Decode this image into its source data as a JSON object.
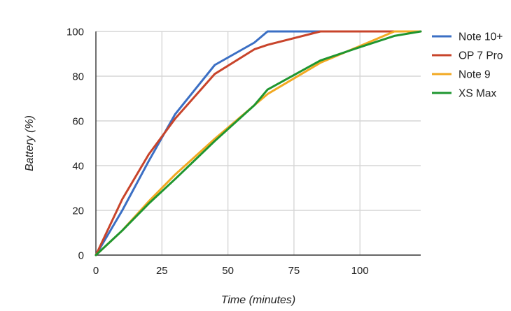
{
  "chart_data": {
    "type": "line",
    "title": "",
    "xlabel": "Time (minutes)",
    "ylabel": "Battery (%)",
    "xlim": [
      0,
      123
    ],
    "ylim": [
      0,
      100
    ],
    "x_ticks": [
      0,
      25,
      50,
      75,
      100
    ],
    "y_ticks": [
      0,
      20,
      40,
      60,
      80,
      100
    ],
    "grid": true,
    "legend_position": "right",
    "series": [
      {
        "name": "Note 10+",
        "color": "#3b6fc4",
        "points": [
          [
            0,
            0
          ],
          [
            10,
            20
          ],
          [
            20,
            42
          ],
          [
            30,
            63
          ],
          [
            45,
            85
          ],
          [
            60,
            95
          ],
          [
            65,
            100
          ],
          [
            123,
            100
          ]
        ]
      },
      {
        "name": "OP 7 Pro",
        "color": "#c8442b",
        "points": [
          [
            0,
            0
          ],
          [
            10,
            25
          ],
          [
            20,
            45
          ],
          [
            30,
            61
          ],
          [
            45,
            81
          ],
          [
            60,
            92
          ],
          [
            65,
            94
          ],
          [
            85,
            100
          ],
          [
            123,
            100
          ]
        ]
      },
      {
        "name": "Note 9",
        "color": "#f2a922",
        "points": [
          [
            0,
            0
          ],
          [
            10,
            11
          ],
          [
            20,
            24
          ],
          [
            30,
            36
          ],
          [
            45,
            52
          ],
          [
            60,
            67
          ],
          [
            65,
            72
          ],
          [
            85,
            86
          ],
          [
            113,
            100
          ],
          [
            123,
            100
          ]
        ]
      },
      {
        "name": "XS Max",
        "color": "#1f9630",
        "points": [
          [
            0,
            0
          ],
          [
            10,
            11
          ],
          [
            20,
            23
          ],
          [
            30,
            34
          ],
          [
            45,
            51
          ],
          [
            60,
            67
          ],
          [
            65,
            74
          ],
          [
            85,
            87
          ],
          [
            100,
            93
          ],
          [
            113,
            98
          ],
          [
            123,
            100
          ]
        ]
      }
    ]
  }
}
